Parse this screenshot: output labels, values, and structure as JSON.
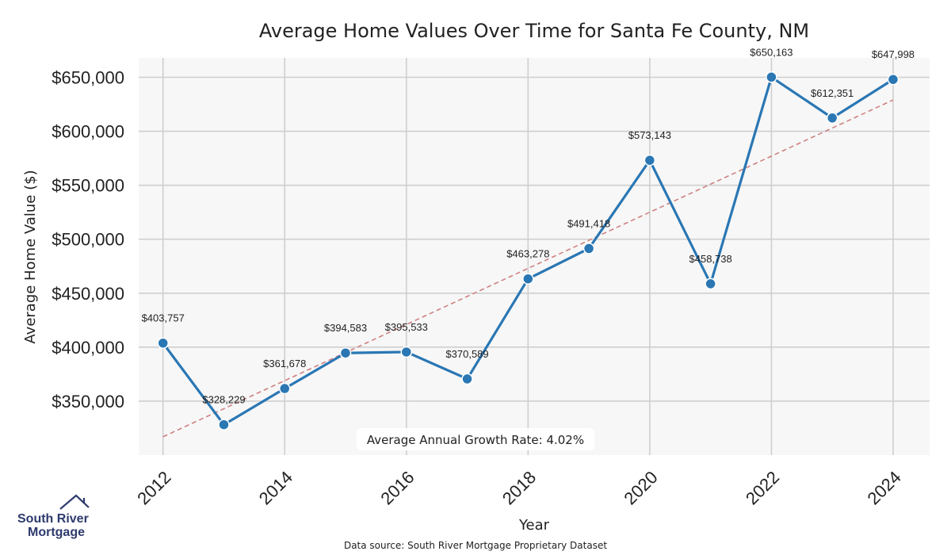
{
  "chart_data": {
    "type": "line",
    "title": "Average Home Values Over Time for Santa Fe County, NM",
    "xlabel": "Year",
    "ylabel": "Average Home Value ($)",
    "x": [
      2012,
      2013,
      2014,
      2015,
      2016,
      2017,
      2018,
      2019,
      2020,
      2021,
      2022,
      2023,
      2024
    ],
    "series": [
      {
        "values": [
          403757,
          328229,
          361678,
          394583,
          395533,
          370589,
          463278,
          491418,
          573143,
          458738,
          650163,
          612351,
          647998
        ],
        "labels": [
          "$403,757",
          "$328,229",
          "$361,678",
          "$394,583",
          "$395,533",
          "$370,589",
          "$463,278",
          "$491,418",
          "$573,143",
          "$458,738",
          "$650,163",
          "$612,351",
          "$647,998"
        ],
        "color": "#2a77b4"
      }
    ],
    "trendline": {
      "start": [
        2012,
        317000
      ],
      "end": [
        2024,
        629000
      ],
      "color": "#d08080",
      "style": "dashed"
    },
    "xticks": [
      2012,
      2014,
      2016,
      2018,
      2020,
      2022,
      2024
    ],
    "xtick_labels": [
      "2012",
      "2014",
      "2016",
      "2018",
      "2020",
      "2022",
      "2024"
    ],
    "yticks": [
      350000,
      400000,
      450000,
      500000,
      550000,
      600000,
      650000
    ],
    "ytick_labels": [
      "$350,000",
      "$400,000",
      "$450,000",
      "$500,000",
      "$550,000",
      "$600,000",
      "$650,000"
    ],
    "xlim": [
      2011.6,
      2024.6
    ],
    "ylim": [
      300000,
      668000
    ],
    "grid": true,
    "annotation": "Average Annual Growth Rate: 4.02%"
  },
  "source_note": "Data source: South River Mortgage Proprietary Dataset",
  "logo": {
    "line1": "South River",
    "line2": "Mortgage",
    "color": "#2d3a6e"
  }
}
